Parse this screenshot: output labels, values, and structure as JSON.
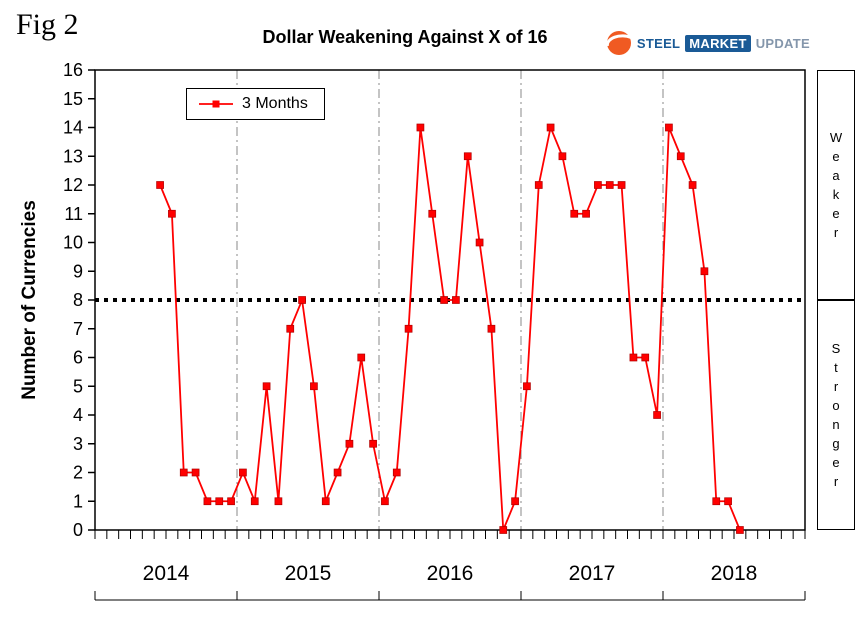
{
  "fig_label": "Fig 2",
  "logo": {
    "steel": "STEEL",
    "market": "MARKET",
    "update": "UPDATE"
  },
  "side_labels": {
    "top": "Weaker",
    "bottom": "Stronger"
  },
  "colors": {
    "series": "#ff0000",
    "reference_line": "#000000",
    "gridline": "#888888",
    "logo_orange": "#f05a22",
    "logo_blue": "#1a5a96"
  },
  "chart_data": {
    "type": "line",
    "title": "Dollar Weakening Against X of 16",
    "ylabel": "Number of Currencies",
    "ylim": [
      0,
      16
    ],
    "ytick_step": 1,
    "reference_y": 8,
    "grid": "vertical-year-dashdot",
    "legend_position": "top-left-inside",
    "x_years": [
      2014,
      2015,
      2016,
      2017,
      2018
    ],
    "start_month_offset": 5,
    "series": [
      {
        "name": "3 Months",
        "color": "#ff0000",
        "marker": "square",
        "start": "2014-06",
        "values": [
          12,
          11,
          2,
          2,
          1,
          1,
          1,
          2,
          1,
          5,
          1,
          7,
          8,
          5,
          1,
          2,
          3,
          6,
          3,
          1,
          2,
          7,
          14,
          11,
          8,
          8,
          13,
          10,
          7,
          0,
          1,
          5,
          12,
          14,
          13,
          11,
          11,
          12,
          12,
          12,
          6,
          6,
          4,
          14,
          13,
          12,
          9,
          1,
          1,
          0
        ]
      }
    ]
  }
}
